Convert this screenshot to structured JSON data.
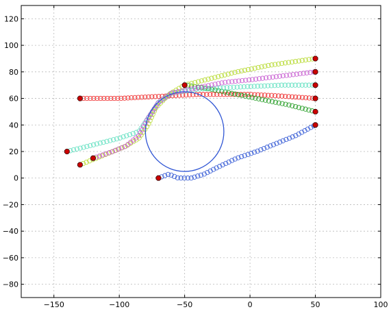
{
  "chart_data": {
    "type": "scatter",
    "title": "",
    "xlabel": "",
    "ylabel": "",
    "xlim": [
      -175,
      100
    ],
    "ylim": [
      -90,
      130
    ],
    "grid": true,
    "x_ticks": [
      -150,
      -100,
      -50,
      0,
      50,
      100
    ],
    "y_ticks": [
      -80,
      -60,
      -40,
      -20,
      0,
      20,
      40,
      60,
      80,
      100,
      120
    ],
    "marker": "open-circle",
    "endpoint_marker": "filled-red-octagon",
    "colors": {
      "red": "#ee2222",
      "blue": "#2f55d4",
      "green": "#1f9a1f",
      "lime": "#b6d92c",
      "cyan": "#5fe0c0",
      "magenta": "#c65ad0",
      "endpoint": "#cc0000",
      "circle": "#2f55d4"
    },
    "circle": {
      "center": [
        -50,
        35
      ],
      "radius": 30
    },
    "series": [
      {
        "color_key": "red",
        "points": [
          [
            -130,
            60
          ],
          [
            -100,
            60
          ],
          [
            -80,
            61
          ],
          [
            -60,
            62
          ],
          [
            -40,
            63
          ],
          [
            -20,
            63
          ],
          [
            0,
            63
          ],
          [
            20,
            62
          ],
          [
            50,
            60
          ]
        ]
      },
      {
        "color_key": "blue",
        "points": [
          [
            -70,
            0
          ],
          [
            -62,
            3
          ],
          [
            -55,
            0
          ],
          [
            -45,
            0
          ],
          [
            -35,
            3
          ],
          [
            -25,
            8
          ],
          [
            -10,
            15
          ],
          [
            5,
            20
          ],
          [
            20,
            26
          ],
          [
            35,
            32
          ],
          [
            50,
            40
          ]
        ]
      },
      {
        "color_key": "green",
        "points": [
          [
            -50,
            70
          ],
          [
            -30,
            67
          ],
          [
            -10,
            63
          ],
          [
            10,
            59
          ],
          [
            30,
            55
          ],
          [
            50,
            50
          ]
        ]
      },
      {
        "color_key": "cyan",
        "points": [
          [
            -140,
            20
          ],
          [
            -120,
            25
          ],
          [
            -100,
            30
          ],
          [
            -85,
            35
          ],
          [
            -78,
            45
          ],
          [
            -70,
            57
          ],
          [
            -60,
            64
          ],
          [
            -40,
            67
          ],
          [
            -20,
            68
          ],
          [
            0,
            69
          ],
          [
            25,
            70
          ],
          [
            50,
            70
          ]
        ]
      },
      {
        "color_key": "lime",
        "points": [
          [
            -130,
            10
          ],
          [
            -110,
            18
          ],
          [
            -95,
            24
          ],
          [
            -85,
            30
          ],
          [
            -78,
            40
          ],
          [
            -72,
            53
          ],
          [
            -62,
            63
          ],
          [
            -50,
            70
          ],
          [
            -30,
            75
          ],
          [
            -10,
            80
          ],
          [
            15,
            85
          ],
          [
            50,
            90
          ]
        ]
      },
      {
        "color_key": "magenta",
        "points": [
          [
            -120,
            15
          ],
          [
            -105,
            20
          ],
          [
            -95,
            24
          ],
          [
            -85,
            32
          ],
          [
            -78,
            45
          ],
          [
            -70,
            57
          ],
          [
            -60,
            64
          ],
          [
            -40,
            68
          ],
          [
            -20,
            72
          ],
          [
            0,
            74
          ],
          [
            25,
            77
          ],
          [
            50,
            80
          ]
        ]
      }
    ],
    "endpoints": [
      [
        -130,
        60
      ],
      [
        -140,
        20
      ],
      [
        -130,
        10
      ],
      [
        -120,
        15
      ],
      [
        -70,
        0
      ],
      [
        -50,
        70
      ],
      [
        50,
        90
      ],
      [
        50,
        80
      ],
      [
        50,
        70
      ],
      [
        50,
        60
      ],
      [
        50,
        50
      ],
      [
        50,
        40
      ]
    ]
  }
}
